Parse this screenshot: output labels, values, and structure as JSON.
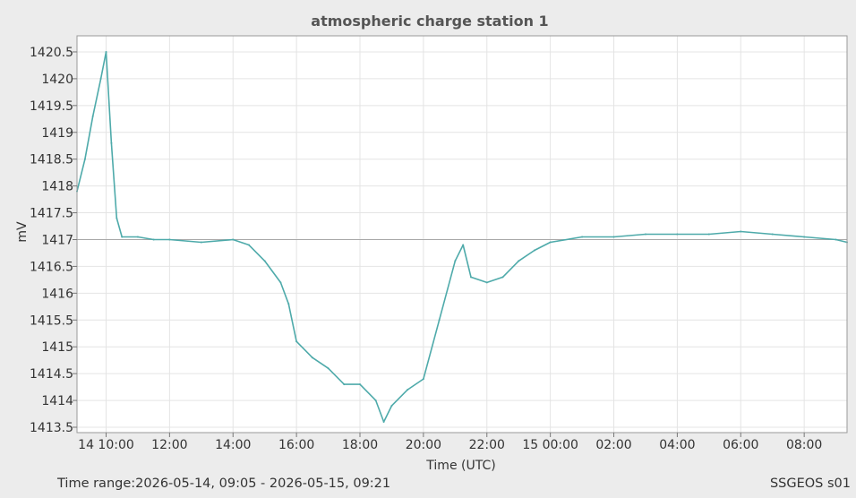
{
  "chart_data": {
    "type": "line",
    "title": "atmospheric charge station 1",
    "xlabel": "Time (UTC)",
    "ylabel": "mV",
    "x_ticks": [
      "14 10:00",
      "12:00",
      "14:00",
      "16:00",
      "18:00",
      "20:00",
      "22:00",
      "15 00:00",
      "02:00",
      "04:00",
      "06:00",
      "08:00"
    ],
    "x_tick_times": [
      "2026-05-14T10:00",
      "2026-05-14T12:00",
      "2026-05-14T14:00",
      "2026-05-14T16:00",
      "2026-05-14T18:00",
      "2026-05-14T20:00",
      "2026-05-14T22:00",
      "2026-05-15T00:00",
      "2026-05-15T02:00",
      "2026-05-15T04:00",
      "2026-05-15T06:00",
      "2026-05-15T08:00"
    ],
    "y_ticks": [
      "1413.5",
      "1414",
      "1414.5",
      "1415",
      "1415.5",
      "1416",
      "1416.5",
      "1417",
      "1417.5",
      "1418",
      "1418.5",
      "1419",
      "1419.5",
      "1420",
      "1420.5"
    ],
    "xlim": [
      "2026-05-14T09:05",
      "2026-05-15T09:21"
    ],
    "ylim": [
      1413.4,
      1420.8
    ],
    "grid": true,
    "reference_line": 1417,
    "series": [
      {
        "color": "#4eaaaa",
        "x": [
          "2026-05-14T09:05",
          "2026-05-14T09:20",
          "2026-05-14T09:35",
          "2026-05-14T09:50",
          "2026-05-14T10:00",
          "2026-05-14T10:10",
          "2026-05-14T10:20",
          "2026-05-14T10:30",
          "2026-05-14T11:00",
          "2026-05-14T11:30",
          "2026-05-14T12:00",
          "2026-05-14T13:00",
          "2026-05-14T14:00",
          "2026-05-14T14:30",
          "2026-05-14T15:00",
          "2026-05-14T15:30",
          "2026-05-14T15:45",
          "2026-05-14T16:00",
          "2026-05-14T16:30",
          "2026-05-14T17:00",
          "2026-05-14T17:30",
          "2026-05-14T18:00",
          "2026-05-14T18:30",
          "2026-05-14T18:45",
          "2026-05-14T19:00",
          "2026-05-14T19:30",
          "2026-05-14T20:00",
          "2026-05-14T20:30",
          "2026-05-14T21:00",
          "2026-05-14T21:15",
          "2026-05-14T21:30",
          "2026-05-14T22:00",
          "2026-05-14T22:30",
          "2026-05-14T23:00",
          "2026-05-14T23:30",
          "2026-05-15T00:00",
          "2026-05-15T01:00",
          "2026-05-15T02:00",
          "2026-05-15T03:00",
          "2026-05-15T04:00",
          "2026-05-15T05:00",
          "2026-05-15T06:00",
          "2026-05-15T07:00",
          "2026-05-15T08:00",
          "2026-05-15T09:00",
          "2026-05-15T09:21"
        ],
        "values": [
          1417.9,
          1418.5,
          1419.3,
          1420.0,
          1420.5,
          1418.8,
          1417.4,
          1417.05,
          1417.05,
          1417.0,
          1417.0,
          1416.95,
          1417.0,
          1416.9,
          1416.6,
          1416.2,
          1415.8,
          1415.1,
          1414.8,
          1414.6,
          1414.3,
          1414.3,
          1414.0,
          1413.6,
          1413.9,
          1414.2,
          1414.4,
          1415.5,
          1416.6,
          1416.9,
          1416.3,
          1416.2,
          1416.3,
          1416.6,
          1416.8,
          1416.95,
          1417.05,
          1417.05,
          1417.1,
          1417.1,
          1417.1,
          1417.15,
          1417.1,
          1417.05,
          1417.0,
          1416.95
        ]
      }
    ]
  },
  "footer": {
    "time_range": "Time range:2026-05-14, 09:05 - 2026-05-15, 09:21",
    "source": "SSGEOS s01"
  }
}
